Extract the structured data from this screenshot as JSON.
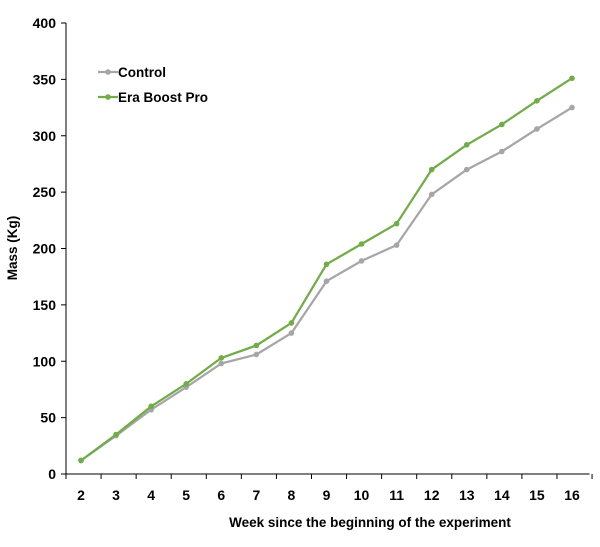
{
  "chart_data": {
    "type": "line",
    "title": "",
    "xlabel": "Week since the beginning of the experiment",
    "ylabel": "Mass (Kg)",
    "x": [
      2,
      3,
      4,
      5,
      6,
      7,
      8,
      9,
      10,
      11,
      12,
      13,
      14,
      15,
      16
    ],
    "ylim": [
      0,
      400
    ],
    "yticks": [
      0,
      50,
      100,
      150,
      200,
      250,
      300,
      350,
      400
    ],
    "grid": false,
    "legend_position": "top-left",
    "series": [
      {
        "name": "Control",
        "color": "#a6a6a6",
        "values": [
          12,
          34,
          57,
          77,
          98,
          106,
          125,
          171,
          189,
          203,
          248,
          270,
          286,
          306,
          325
        ]
      },
      {
        "name": "Era Boost Pro",
        "color": "#70ad47",
        "values": [
          12,
          35,
          60,
          80,
          103,
          114,
          134,
          186,
          204,
          222,
          270,
          292,
          310,
          331,
          351
        ]
      }
    ]
  }
}
